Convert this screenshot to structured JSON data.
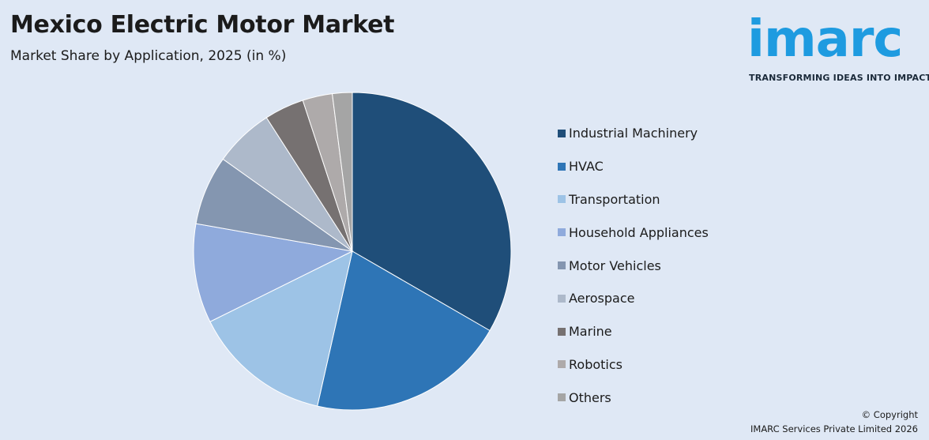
{
  "header": {
    "title": "Mexico Electric Motor Market",
    "subtitle": "Market Share by Application, 2025 (in %)"
  },
  "logo": {
    "word": "imarc",
    "tagline": "TRANSFORMING IDEAS INTO IMPACT",
    "color": "#1e9be0"
  },
  "chart_data": {
    "type": "pie",
    "title": "Mexico Electric Motor Market",
    "subtitle": "Market Share by Application, 2025 (in %)",
    "legend_position": "right",
    "series": [
      {
        "name": "Industrial Machinery",
        "value": 33,
        "color": "#1f4e79"
      },
      {
        "name": "HVAC",
        "value": 20,
        "color": "#2e75b6"
      },
      {
        "name": "Transportation",
        "value": 14,
        "color": "#9dc3e6"
      },
      {
        "name": "Household Appliances",
        "value": 10,
        "color": "#8faadc"
      },
      {
        "name": "Motor Vehicles",
        "value": 7,
        "color": "#8496b0"
      },
      {
        "name": "Aerospace",
        "value": 6,
        "color": "#adb9ca"
      },
      {
        "name": "Marine",
        "value": 4,
        "color": "#767171"
      },
      {
        "name": "Robotics",
        "value": 3,
        "color": "#aeaaaa"
      },
      {
        "name": "Others",
        "value": 2,
        "color": "#a5a5a5"
      }
    ]
  },
  "footer": {
    "copyright_line1": "© Copyright",
    "copyright_line2": "IMARC Services Private Limited 2026"
  }
}
